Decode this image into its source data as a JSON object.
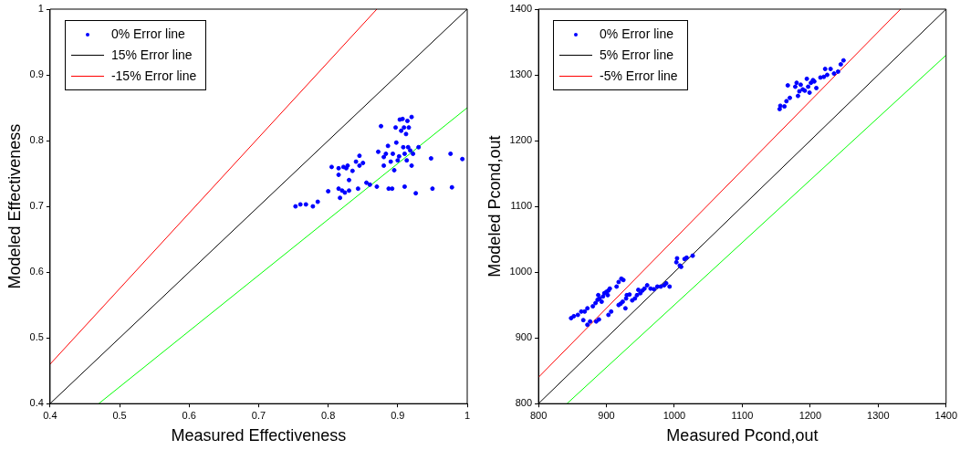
{
  "chart_data": [
    {
      "type": "scatter",
      "xlabel": "Measured Effectiveness",
      "ylabel": "Modeled Effectiveness",
      "xlim": [
        0.4,
        1
      ],
      "ylim": [
        0.4,
        1
      ],
      "xticks": [
        0.4,
        0.5,
        0.6,
        0.7,
        0.8,
        0.9,
        1
      ],
      "yticks": [
        0.4,
        0.5,
        0.6,
        0.7,
        0.8,
        0.9,
        1
      ],
      "grid": false,
      "legend": "top left",
      "marker": "circle",
      "series": [
        {
          "name": "0% Error line",
          "color": "#0000ff",
          "x": [
            0.753,
            0.76,
            0.768,
            0.778,
            0.785,
            0.8,
            0.805,
            0.815,
            0.815,
            0.815,
            0.817,
            0.82,
            0.822,
            0.824,
            0.826,
            0.828,
            0.83,
            0.83,
            0.835,
            0.84,
            0.843,
            0.845,
            0.845,
            0.85,
            0.855,
            0.86,
            0.87,
            0.872,
            0.876,
            0.88,
            0.88,
            0.883,
            0.886,
            0.887,
            0.89,
            0.892,
            0.893,
            0.895,
            0.897,
            0.898,
            0.9,
            0.902,
            0.903,
            0.905,
            0.907,
            0.908,
            0.909,
            0.91,
            0.91,
            0.912,
            0.913,
            0.914,
            0.915,
            0.916,
            0.918,
            0.92,
            0.92,
            0.922,
            0.926,
            0.93,
            0.948,
            0.95,
            0.976,
            0.978,
            0.993
          ],
          "values": [
            0.7,
            0.703,
            0.703,
            0.7,
            0.707,
            0.723,
            0.76,
            0.758,
            0.748,
            0.727,
            0.713,
            0.724,
            0.76,
            0.721,
            0.758,
            0.762,
            0.74,
            0.724,
            0.754,
            0.768,
            0.727,
            0.777,
            0.762,
            0.766,
            0.736,
            0.733,
            0.73,
            0.783,
            0.822,
            0.775,
            0.762,
            0.78,
            0.792,
            0.727,
            0.768,
            0.727,
            0.78,
            0.755,
            0.82,
            0.797,
            0.77,
            0.776,
            0.832,
            0.815,
            0.833,
            0.79,
            0.82,
            0.73,
            0.78,
            0.81,
            0.77,
            0.83,
            0.79,
            0.82,
            0.785,
            0.836,
            0.762,
            0.78,
            0.72,
            0.79,
            0.773,
            0.727,
            0.78,
            0.729,
            0.772
          ]
        },
        {
          "type": "line",
          "name": "15% Error line",
          "color": "#000000",
          "marker": "none",
          "x": [
            0.4,
            1
          ],
          "values": [
            0.4,
            1
          ]
        },
        {
          "type": "line",
          "name": "-15% Error line",
          "color": "#ff0000",
          "marker": "none",
          "x": [
            0.4,
            0.87
          ],
          "values": [
            0.46,
            1
          ]
        },
        {
          "type": "line",
          "color": "#00ff00",
          "marker": "none",
          "x": [
            0.47,
            1
          ],
          "values": [
            0.4,
            0.85
          ]
        }
      ]
    },
    {
      "type": "scatter",
      "xlabel": "Measured Pcond,out",
      "ylabel": "Modeled Pcond,out",
      "xlim": [
        800,
        1400
      ],
      "ylim": [
        800,
        1400
      ],
      "xticks": [
        800,
        900,
        1000,
        1100,
        1200,
        1300,
        1400
      ],
      "yticks": [
        800,
        900,
        1000,
        1100,
        1200,
        1300,
        1400
      ],
      "grid": false,
      "legend": "top left",
      "marker": "circle",
      "series": [
        {
          "name": "0% Error line",
          "color": "#0000ff",
          "x": [
            848,
            852,
            858,
            863,
            866,
            868,
            872,
            872,
            876,
            880,
            884,
            885,
            887,
            888,
            889,
            890,
            893,
            895,
            897,
            900,
            902,
            903,
            905,
            903,
            907,
            915,
            918,
            922,
            925,
            918,
            921,
            924,
            928,
            929,
            930,
            934,
            938,
            942,
            945,
            947,
            950,
            953,
            956,
            960,
            965,
            970,
            975,
            980,
            985,
            988,
            993,
            1003,
            1004,
            1008,
            1010,
            1015,
            1018,
            1027,
            1155,
            1156,
            1162,
            1165,
            1167,
            1170,
            1178,
            1180,
            1182,
            1184,
            1186,
            1189,
            1192,
            1195,
            1197,
            1199,
            1201,
            1204,
            1206,
            1209,
            1215,
            1220,
            1222,
            1225,
            1230,
            1235,
            1241,
            1245,
            1249
          ],
          "values": [
            930,
            933,
            935,
            940,
            927,
            940,
            945,
            920,
            925,
            948,
            953,
            925,
            958,
            965,
            928,
            960,
            955,
            963,
            968,
            970,
            965,
            972,
            975,
            935,
            940,
            978,
            985,
            990,
            988,
            950,
            952,
            955,
            945,
            960,
            965,
            966,
            957,
            960,
            965,
            973,
            968,
            972,
            975,
            980,
            975,
            974,
            978,
            978,
            980,
            983,
            978,
            1015,
            1021,
            1010,
            1008,
            1020,
            1022,
            1025,
            1248,
            1253,
            1252,
            1260,
            1284,
            1265,
            1282,
            1288,
            1268,
            1275,
            1285,
            1278,
            1276,
            1294,
            1282,
            1273,
            1288,
            1292,
            1290,
            1280,
            1296,
            1297,
            1309,
            1300,
            1309,
            1302,
            1305,
            1316,
            1322
          ]
        },
        {
          "type": "line",
          "name": "5% Error line",
          "color": "#000000",
          "marker": "none",
          "x": [
            800,
            1400
          ],
          "values": [
            800,
            1400
          ]
        },
        {
          "type": "line",
          "name": "-5% Error line",
          "color": "#ff0000",
          "marker": "none",
          "x": [
            800,
            1333
          ],
          "values": [
            840,
            1400
          ]
        },
        {
          "type": "line",
          "color": "#00ff00",
          "marker": "none",
          "x": [
            842,
            1400
          ],
          "values": [
            800,
            1330
          ]
        }
      ]
    }
  ]
}
